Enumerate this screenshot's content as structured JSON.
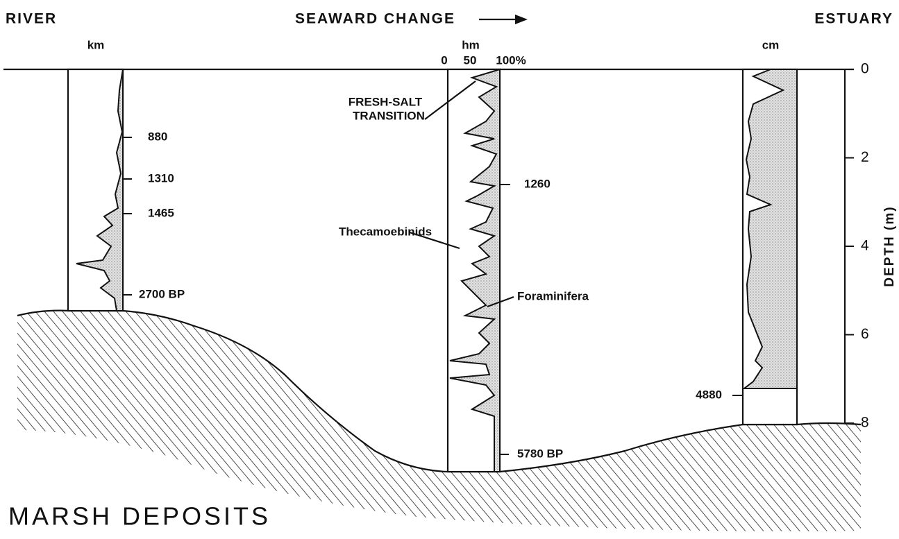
{
  "header": {
    "left": "RIVER",
    "center": "SEAWARD CHANGE",
    "right": "ESTUARY"
  },
  "columns": [
    {
      "unit": "km",
      "dates": [
        "880",
        "1310",
        "1465",
        "2700 BP"
      ]
    },
    {
      "unit": "hm",
      "scale": [
        "0",
        "50",
        "100%"
      ],
      "dates": [
        "1260",
        "5780 BP"
      ]
    },
    {
      "unit": "cm",
      "dates": [
        "4880"
      ]
    }
  ],
  "annotations": {
    "transition": [
      "FRESH-SALT",
      "TRANSITION"
    ],
    "thecamoebinids": "Thecamoebinids",
    "foraminifera": "Foraminifera"
  },
  "depth_axis": {
    "label": "DEPTH (m)",
    "lim": [
      0,
      8
    ],
    "ticks": [
      0,
      2,
      4,
      6,
      8
    ]
  },
  "title": "MARSH DEPOSITS"
}
